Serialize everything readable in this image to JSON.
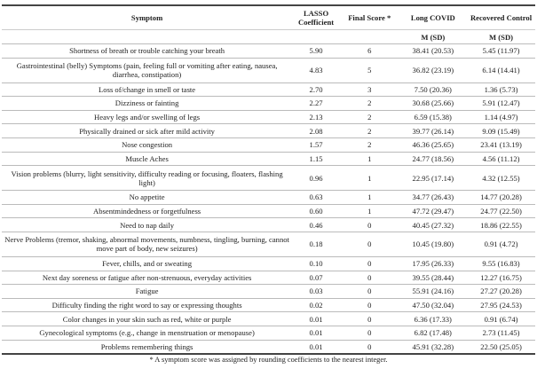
{
  "table": {
    "headers": [
      "Symptom",
      "LASSO Coefficient",
      "Final Score *",
      "Long COVID",
      "Recovered Control"
    ],
    "subheaders": [
      "",
      "",
      "",
      "M (SD)",
      "M (SD)"
    ],
    "rows": [
      [
        "Shortness of breath or trouble catching your breath",
        "5.90",
        "6",
        "38.41 (20.53)",
        "5.45 (11.97)"
      ],
      [
        "Gastrointestinal (belly) Symptoms (pain, feeling full or vomiting after eating, nausea, diarrhea, constipation)",
        "4.83",
        "5",
        "36.82 (23.19)",
        "6.14 (14.41)"
      ],
      [
        "Loss of/change in smell or taste",
        "2.70",
        "3",
        "7.50 (20.36)",
        "1.36 (5.73)"
      ],
      [
        "Dizziness or fainting",
        "2.27",
        "2",
        "30.68 (25.66)",
        "5.91 (12.47)"
      ],
      [
        "Heavy legs and/or swelling of legs",
        "2.13",
        "2",
        "6.59 (15.38)",
        "1.14 (4.97)"
      ],
      [
        "Physically drained or sick after mild activity",
        "2.08",
        "2",
        "39.77 (26.14)",
        "9.09 (15.49)"
      ],
      [
        "Nose congestion",
        "1.57",
        "2",
        "46.36 (25.65)",
        "23.41 (13.19)"
      ],
      [
        "Muscle Aches",
        "1.15",
        "1",
        "24.77 (18.56)",
        "4.56 (11.12)"
      ],
      [
        "Vision problems (blurry, light sensitivity, difficulty reading or focusing, floaters, flashing light)",
        "0.96",
        "1",
        "22.95 (17.14)",
        "4.32 (12.55)"
      ],
      [
        "No appetite",
        "0.63",
        "1",
        "34.77 (26.43)",
        "14.77 (20.28)"
      ],
      [
        "Absentmindedness or forgetfulness",
        "0.60",
        "1",
        "47.72 (29.47)",
        "24.77 (22.50)"
      ],
      [
        "Need to nap daily",
        "0.46",
        "0",
        "40.45 (27.32)",
        "18.86 (22.55)"
      ],
      [
        "Nerve Problems (tremor, shaking, abnormal movements, numbness, tingling, burning, cannot move part of body, new seizures)",
        "0.18",
        "0",
        "10.45 (19.80)",
        "0.91 (4.72)"
      ],
      [
        "Fever, chills, and or sweating",
        "0.10",
        "0",
        "17.95 (26.33)",
        "9.55 (16.83)"
      ],
      [
        "Next day soreness or fatigue after non-strenuous, everyday activities",
        "0.07",
        "0",
        "39.55 (28.44)",
        "12.27 (16.75)"
      ],
      [
        "Fatigue",
        "0.03",
        "0",
        "55.91 (24.16)",
        "27.27 (20.28)"
      ],
      [
        "Difficulty finding the right word to say or expressing thoughts",
        "0.02",
        "0",
        "47.50 (32.04)",
        "27.95 (24.53)"
      ],
      [
        "Color changes in your skin such as red, white or purple",
        "0.01",
        "0",
        "6.36 (17.33)",
        "0.91 (6.74)"
      ],
      [
        "Gynecological symptoms (e.g., change in menstruation or menopause)",
        "0.01",
        "0",
        "6.82 (17.48)",
        "2.73 (11.45)"
      ],
      [
        "Problems remembering things",
        "0.01",
        "0",
        "45.91 (32.28)",
        "22.50 (25.05)"
      ]
    ]
  },
  "footnote": "* A symptom score was assigned by rounding coefficients to the nearest integer."
}
